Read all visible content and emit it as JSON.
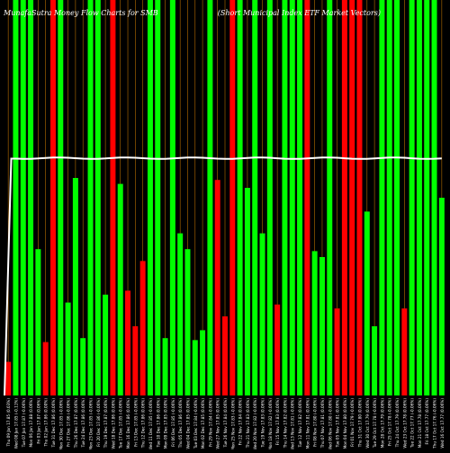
{
  "chart_data": {
    "type": "bar",
    "title": "MunafaSutra Money Flow Charts for SMB                          (Short Municipal Index ETF Market Vectors)",
    "ylim": [
      0,
      100
    ],
    "line_level": 60,
    "categories": [
      "Thu 09 Jan",
      "Wed 08 Jan",
      "Tue 07 Jan",
      "Mon 06 Jan",
      "Fri 03 Jan",
      "Thu 02 Jan",
      "Tue 31 Dec",
      "Mon 30 Dec",
      "Fri 27 Dec",
      "Thu 26 Dec",
      "Tue 24 Dec",
      "Mon 23 Dec",
      "Fri 20 Dec",
      "Thu 19 Dec",
      "Wed 18 Dec",
      "Tue 17 Dec",
      "Mon 16 Dec",
      "Fri 13 Dec",
      "Thu 12 Dec",
      "Wed 11 Dec",
      "Tue 10 Dec",
      "Mon 09 Dec",
      "Fri 06 Dec",
      "Thu 05 Dec",
      "Wed 04 Dec",
      "Tue 03 Dec",
      "Mon 02 Dec",
      "Fri 29 Nov",
      "Wed 27 Nov",
      "Tue 26 Nov",
      "Mon 25 Nov",
      "Fri 22 Nov",
      "Thu 21 Nov",
      "Wed 20 Nov",
      "Tue 19 Nov",
      "Mon 18 Nov",
      "Fri 15 Nov",
      "Thu 14 Nov",
      "Wed 13 Nov",
      "Tue 12 Nov",
      "Mon 11 Nov",
      "Fri 08 Nov",
      "Thu 07 Nov",
      "Wed 06 Nov",
      "Tue 05 Nov",
      "Mon 04 Nov",
      "Fri 01 Nov",
      "Thu 31 Oct",
      "Wed 30 Oct",
      "Tue 29 Oct",
      "Mon 28 Oct",
      "Fri 25 Oct",
      "Thu 24 Oct",
      "Wed 23 Oct",
      "Tue 22 Oct",
      "Mon 21 Oct",
      "Fri 18 Oct",
      "Thu 17 Oct",
      "Wed 16 Oct"
    ],
    "xtick_labels": [
      "17.85 (0.03%)",
      "17.85 (-0.11%)",
      "17.87 (-0.06%)",
      "17.88 (0.06%)",
      "17.87 (0.06%)",
      "17.86 (0.00%)",
      "17.86 (0.06%)",
      "17.85 (-0.06%)",
      "17.86 (-0.06%)",
      "17.87 (0.06%)",
      "17.86 (0.06%)",
      "17.85 (-0.06%)",
      "17.86 (-0.06%)",
      "17.87 (0.06%)",
      "17.86 (0.06%)",
      "17.85 (-0.06%)",
      "17.86 (0.06%)",
      "17.85 (-0.06%)",
      "17.86 (0.06%)",
      "17.85 (-0.06%)",
      "17.86 (0.06%)",
      "17.85 (0.00%)",
      "17.85 (-0.06%)",
      "17.86 (0.06%)",
      "17.85 (0.06%)",
      "17.84 (-0.06%)",
      "17.85 (0.06%)",
      "17.84 (-0.06%)",
      "17.85 (0.06%)",
      "17.84 (0.06%)",
      "17.83 (-0.06%)",
      "17.84 (0.06%)",
      "17.83 (0.06%)",
      "17.82 (-0.06%)",
      "17.83 (0.06%)",
      "17.82 (-0.06%)",
      "17.83 (0.06%)",
      "17.82 (0.06%)",
      "17.81 (-0.06%)",
      "17.82 (0.06%)",
      "17.81 (0.06%)",
      "17.80 (-0.06%)",
      "17.81 (0.06%)",
      "17.80 (-0.06%)",
      "17.81 (0.06%)",
      "17.80 (0.06%)",
      "17.79 (-0.06%)",
      "17.80 (0.06%)",
      "17.79 (0.06%)",
      "17.78 (-0.06%)",
      "17.79 (0.06%)",
      "17.78 (-0.06%)",
      "17.79 (0.06%)",
      "17.78 (0.06%)",
      "17.77 (-0.06%)",
      "17.78 (0.06%)",
      "17.77 (0.06%)",
      "17.76 (-0.06%)",
      "17.77 (0.06%)"
    ],
    "directions": [
      "down",
      "up",
      "up",
      "up",
      "up",
      "down",
      "down",
      "up",
      "up",
      "up",
      "up",
      "up",
      "up",
      "up",
      "down",
      "up",
      "down",
      "down",
      "down",
      "up",
      "up",
      "up",
      "up",
      "up",
      "up",
      "up",
      "up",
      "up",
      "down",
      "down",
      "down",
      "up",
      "up",
      "up",
      "up",
      "up",
      "down",
      "up",
      "up",
      "up",
      "down",
      "up",
      "up",
      "up",
      "down",
      "down",
      "down",
      "down",
      "up",
      "up",
      "up",
      "up",
      "up",
      "down",
      "up",
      "up",
      "up",
      "up",
      "up"
    ],
    "values": [
      8.5,
      100,
      100,
      100,
      37,
      13.5,
      100,
      100,
      23.5,
      55,
      14.5,
      100,
      100,
      25.5,
      100,
      53.5,
      26.5,
      17.5,
      34,
      100,
      100,
      14.5,
      100,
      41,
      37,
      14,
      16.5,
      100,
      54.5,
      20,
      100,
      100,
      52.5,
      100,
      41,
      100,
      23,
      100,
      100,
      100,
      100,
      36.5,
      35,
      100,
      22,
      100,
      100,
      100,
      46.5,
      17.5,
      100,
      100,
      100,
      22,
      100,
      100,
      100,
      100,
      50
    ],
    "colors": {
      "up": "#00ff00",
      "down": "#ff0000",
      "line": "#ffffff",
      "grid": "#cc7a00",
      "background": "#000000",
      "text": "#ffffff"
    }
  }
}
